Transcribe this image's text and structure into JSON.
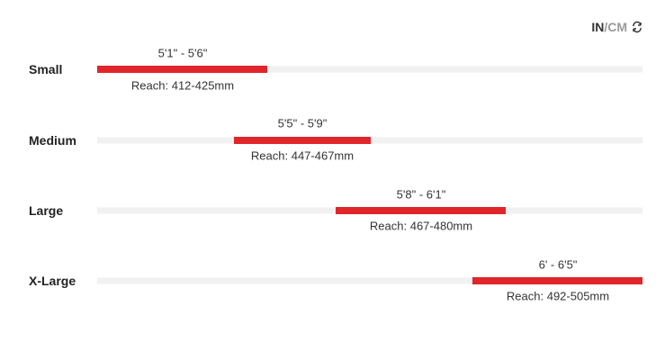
{
  "unit_toggle": {
    "active": "IN",
    "separator": "/",
    "inactive": "CM"
  },
  "sizes": [
    {
      "name": "Small",
      "height": "5'1\" - 5'6\"",
      "reach": "Reach: 412-425mm"
    },
    {
      "name": "Medium",
      "height": "5'5\" - 5'9\"",
      "reach": "Reach: 447-467mm"
    },
    {
      "name": "Large",
      "height": "5'8\" - 6'1\"",
      "reach": "Reach: 467-480mm"
    },
    {
      "name": "X-Large",
      "height": "6' - 6'5\"",
      "reach": "Reach: 492-505mm"
    }
  ]
}
